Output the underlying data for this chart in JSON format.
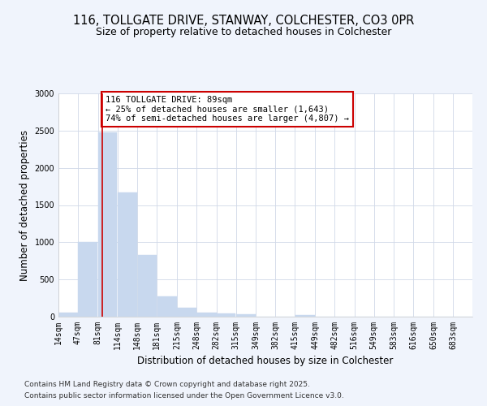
{
  "title_line1": "116, TOLLGATE DRIVE, STANWAY, COLCHESTER, CO3 0PR",
  "title_line2": "Size of property relative to detached houses in Colchester",
  "xlabel": "Distribution of detached houses by size in Colchester",
  "ylabel": "Number of detached properties",
  "bin_labels": [
    "14sqm",
    "47sqm",
    "81sqm",
    "114sqm",
    "148sqm",
    "181sqm",
    "215sqm",
    "248sqm",
    "282sqm",
    "315sqm",
    "349sqm",
    "382sqm",
    "415sqm",
    "449sqm",
    "482sqm",
    "516sqm",
    "549sqm",
    "583sqm",
    "616sqm",
    "650sqm",
    "683sqm"
  ],
  "bin_edges": [
    14,
    47,
    81,
    114,
    148,
    181,
    215,
    248,
    282,
    315,
    349,
    382,
    415,
    449,
    482,
    516,
    549,
    583,
    616,
    650,
    683,
    716
  ],
  "bar_values": [
    50,
    1000,
    2480,
    1670,
    830,
    270,
    125,
    55,
    45,
    30,
    0,
    0,
    20,
    0,
    0,
    0,
    0,
    0,
    0,
    0,
    0
  ],
  "bar_color": "#c8d8ee",
  "bar_edge_color": "#c8d8ee",
  "fig_background_color": "#f0f4fc",
  "plot_background_color": "#ffffff",
  "grid_color": "#d0d8e8",
  "vline_x": 89,
  "vline_color": "#cc0000",
  "annotation_text": "116 TOLLGATE DRIVE: 89sqm\n← 25% of detached houses are smaller (1,643)\n74% of semi-detached houses are larger (4,807) →",
  "annotation_box_color": "#ffffff",
  "annotation_box_edge": "#cc0000",
  "ylim": [
    0,
    3000
  ],
  "yticks": [
    0,
    500,
    1000,
    1500,
    2000,
    2500,
    3000
  ],
  "footnote_line1": "Contains HM Land Registry data © Crown copyright and database right 2025.",
  "footnote_line2": "Contains public sector information licensed under the Open Government Licence v3.0.",
  "title_fontsize": 10.5,
  "title2_fontsize": 9,
  "axis_label_fontsize": 8.5,
  "tick_fontsize": 7,
  "annotation_fontsize": 7.5,
  "footnote_fontsize": 6.5
}
